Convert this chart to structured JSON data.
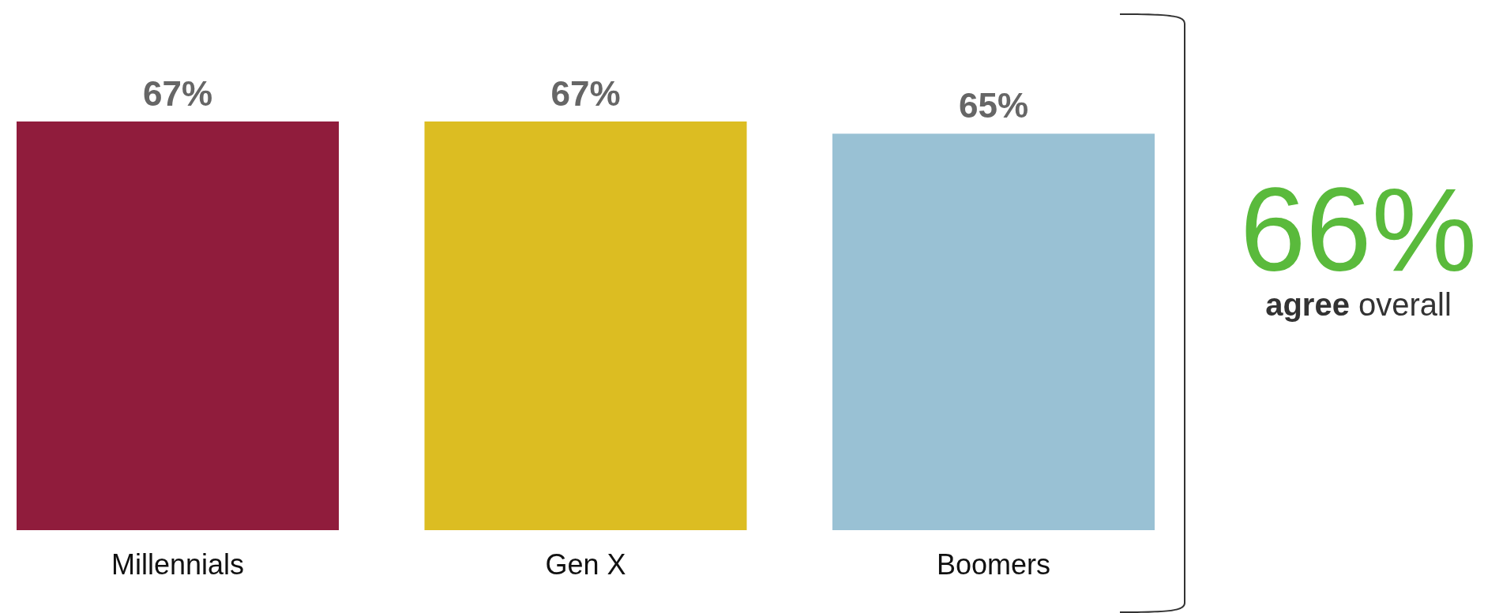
{
  "chart_data": {
    "type": "bar",
    "categories": [
      "Millennials",
      "Gen X",
      "Boomers"
    ],
    "values": [
      67,
      67,
      65
    ],
    "colors": [
      "#901c3c",
      "#dcbd22",
      "#99c1d4"
    ],
    "value_labels": [
      "67%",
      "67%",
      "65%"
    ],
    "annotations": [
      "66%",
      "agree overall"
    ]
  }
}
